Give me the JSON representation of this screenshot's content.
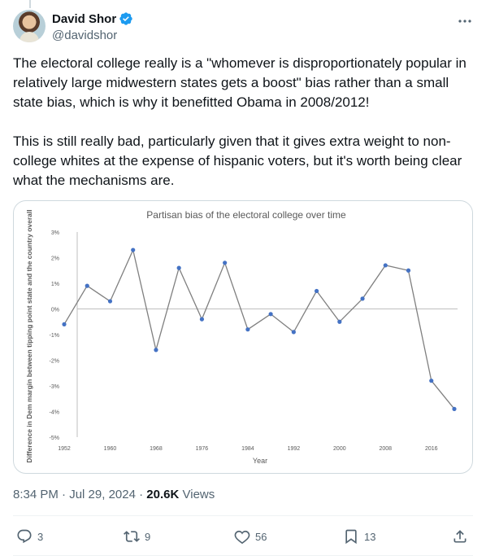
{
  "author": {
    "name": "David Shor",
    "handle": "@davidshor"
  },
  "tweet": {
    "paragraphs": [
      "The electoral college really is a \"whomever is disproportionately popular in relatively large midwestern states gets a boost\" bias rather than a small state bias, which is why it benefitted Obama in 2008/2012!",
      "This is still really bad, particularly given that it gives extra weight to non-college whites at the expense of hispanic voters, but it's worth being clear what the mechanisms are."
    ]
  },
  "meta": {
    "time": "8:34 PM",
    "date": "Jul 29, 2024",
    "separator": "·",
    "views_count": "20.6K",
    "views_label": "Views"
  },
  "actions": {
    "replies": "3",
    "reposts": "9",
    "likes": "56",
    "bookmarks": "13"
  },
  "colors": {
    "accent": "#1d9bf0",
    "line": "#7f7f7f",
    "marker": "#4472c4"
  },
  "chart_data": {
    "type": "line",
    "title": "Partisan bias of the electoral college over time",
    "xlabel": "Year",
    "ylabel": "Difference in Dem margin between tipping point state and the country overall",
    "x": [
      1952,
      1956,
      1960,
      1964,
      1968,
      1972,
      1976,
      1980,
      1984,
      1988,
      1992,
      1996,
      2000,
      2004,
      2008,
      2012,
      2016,
      2020
    ],
    "series": [
      {
        "values": [
          -0.6,
          0.9,
          0.3,
          2.3,
          -1.6,
          1.6,
          -0.4,
          1.8,
          -0.8,
          -0.2,
          -0.9,
          0.7,
          -0.5,
          0.4,
          1.7,
          1.5,
          -2.8,
          -3.9
        ]
      }
    ],
    "xticks": [
      "1952",
      "1960",
      "1968",
      "1976",
      "1984",
      "1992",
      "2000",
      "2008",
      "2016"
    ],
    "yticks": [
      "3%",
      "2%",
      "1%",
      "0%",
      "-1%",
      "-2%",
      "-3%",
      "-4%",
      "-5%"
    ],
    "xlim": [
      1952,
      2020
    ],
    "ylim": [
      -5,
      3
    ],
    "grid": false
  }
}
